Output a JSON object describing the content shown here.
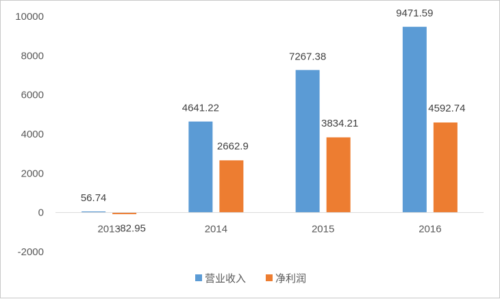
{
  "chart_data": {
    "type": "bar",
    "categories": [
      "2013",
      "2014",
      "2015",
      "2016"
    ],
    "series": [
      {
        "name": "营业收入",
        "color": "#5b9bd5",
        "values": [
          56.74,
          4641.22,
          7267.38,
          9471.59
        ],
        "labels": [
          "56.74",
          "4641.22",
          "7267.38",
          "9471.59"
        ]
      },
      {
        "name": "净利润",
        "color": "#ed7d31",
        "values": [
          -82.95,
          2662.9,
          3834.21,
          4592.74
        ],
        "labels": [
          "-82.95",
          "2662.9",
          "3834.21",
          "4592.74"
        ]
      }
    ],
    "title": "",
    "xlabel": "",
    "ylabel": "",
    "ylim": [
      -2000,
      10000
    ],
    "yticks": [
      "-2000",
      "0",
      "2000",
      "4000",
      "6000",
      "8000",
      "10000"
    ],
    "grid": false,
    "legend_position": "bottom",
    "axis_color": "#d9d9d9"
  }
}
